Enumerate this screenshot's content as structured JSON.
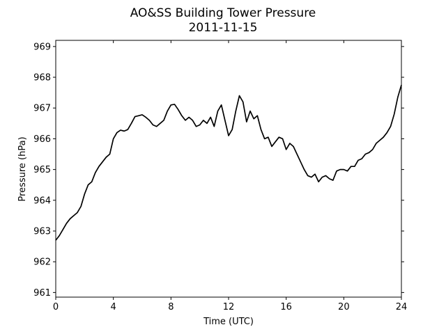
{
  "chart_data": {
    "type": "line",
    "title": "AO&SS Building Tower Pressure",
    "subtitle": "2011-11-15",
    "xlabel": "Time (UTC)",
    "ylabel": "Pressure (hPa)",
    "xlim": [
      0,
      24
    ],
    "ylim": [
      960.85,
      969.2
    ],
    "xticks": [
      0,
      4,
      8,
      12,
      16,
      20,
      24
    ],
    "yticks": [
      961,
      962,
      963,
      964,
      965,
      966,
      967,
      968,
      969
    ],
    "grid": false,
    "line_color": "#000000",
    "series": [
      {
        "x": [
          0.0,
          0.25,
          0.5,
          0.75,
          1.0,
          1.25,
          1.5,
          1.75,
          2.0,
          2.25,
          2.5,
          2.75,
          3.0,
          3.25,
          3.5,
          3.75,
          4.0,
          4.25,
          4.5,
          4.75,
          5.0,
          5.25,
          5.5,
          5.75,
          6.0,
          6.25,
          6.5,
          6.75,
          7.0,
          7.25,
          7.5,
          7.75,
          8.0,
          8.25,
          8.5,
          8.75,
          9.0,
          9.25,
          9.5,
          9.75,
          10.0,
          10.25,
          10.5,
          10.75,
          11.0,
          11.25,
          11.5,
          11.75,
          12.0,
          12.25,
          12.5,
          12.75,
          13.0,
          13.25,
          13.5,
          13.75,
          14.0,
          14.25,
          14.5,
          14.75,
          15.0,
          15.25,
          15.5,
          15.75,
          16.0,
          16.25,
          16.5,
          16.75,
          17.0,
          17.25,
          17.5,
          17.75,
          18.0,
          18.25,
          18.5,
          18.75,
          19.0,
          19.25,
          19.5,
          19.75,
          20.0,
          20.25,
          20.5,
          20.75,
          21.0,
          21.25,
          21.5,
          21.75,
          22.0,
          22.25,
          22.5,
          22.75,
          23.0,
          23.25,
          23.5,
          23.75,
          24.0
        ],
        "values": [
          962.7,
          962.85,
          963.05,
          963.25,
          963.4,
          963.5,
          963.6,
          963.8,
          964.2,
          964.5,
          964.6,
          964.9,
          965.1,
          965.25,
          965.4,
          965.5,
          966.0,
          966.2,
          966.28,
          966.25,
          966.3,
          966.5,
          966.72,
          966.75,
          966.78,
          966.7,
          966.6,
          966.45,
          966.4,
          966.5,
          966.6,
          966.9,
          967.1,
          967.12,
          966.95,
          966.75,
          966.6,
          966.7,
          966.6,
          966.4,
          966.45,
          966.6,
          966.5,
          966.7,
          966.4,
          966.9,
          967.1,
          966.6,
          966.1,
          966.3,
          966.9,
          967.4,
          967.2,
          966.55,
          966.9,
          966.65,
          966.75,
          966.3,
          966.0,
          966.05,
          965.75,
          965.9,
          966.05,
          966.0,
          965.65,
          965.85,
          965.75,
          965.5,
          965.25,
          965.0,
          964.8,
          964.75,
          964.85,
          964.6,
          964.75,
          964.8,
          964.7,
          964.65,
          964.95,
          965.0,
          965.0,
          964.95,
          965.1,
          965.1,
          965.3,
          965.35,
          965.5,
          965.55,
          965.65,
          965.85,
          965.95,
          966.05,
          966.2,
          966.4,
          966.8,
          967.35,
          967.75
        ]
      }
    ]
  }
}
